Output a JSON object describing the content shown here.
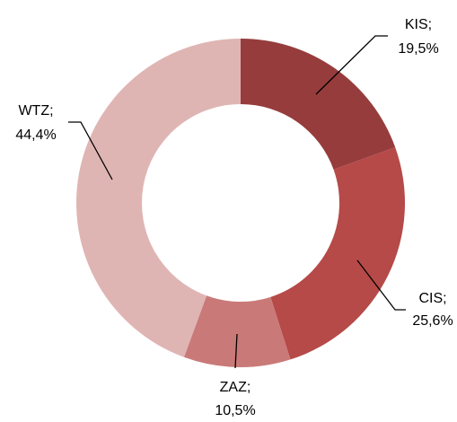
{
  "chart_data": {
    "type": "donut",
    "categories": [
      "KIS;",
      "CIS;",
      "ZAZ;",
      "WTZ;"
    ],
    "values": [
      19.5,
      25.6,
      10.5,
      44.4
    ],
    "value_labels": [
      "19,5%",
      "25,6%",
      "10,5%",
      "44,4%"
    ],
    "colors": [
      "#963c3c",
      "#b54a48",
      "#c97a78",
      "#dfb5b4"
    ]
  }
}
